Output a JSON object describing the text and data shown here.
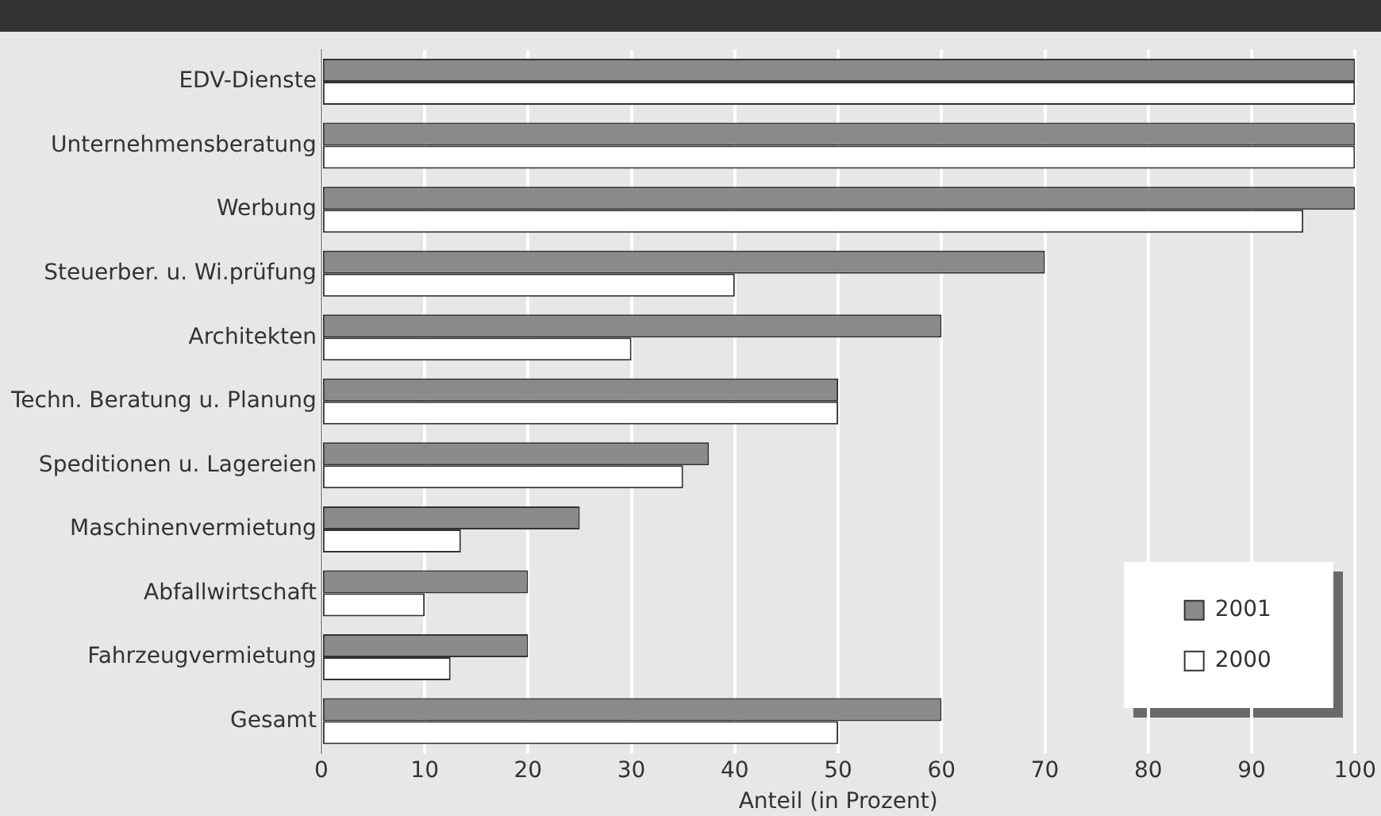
{
  "chart_data": {
    "type": "bar",
    "orientation": "horizontal",
    "xlabel": "Anteil (in Prozent)",
    "categories": [
      "EDV-Dienste",
      "Unternehmensberatung",
      "Werbung",
      "Steuerber. u. Wi.prüfung",
      "Architekten",
      "Techn. Beratung u. Planung",
      "Speditionen u. Lagereien",
      "Maschinenvermietung",
      "Abfallwirtschaft",
      "Fahrzeugvermietung",
      "Gesamt"
    ],
    "series": [
      {
        "name": "2001",
        "color": "#8a8a8a",
        "values": [
          100,
          100,
          100,
          70,
          60,
          50,
          37.5,
          25,
          20,
          20,
          60
        ]
      },
      {
        "name": "2000",
        "color": "#ffffff",
        "values": [
          100,
          100,
          95,
          40,
          30,
          50,
          35,
          13.5,
          10,
          12.5,
          50
        ]
      }
    ],
    "xlim": [
      0,
      100
    ],
    "xticks": [
      0,
      10,
      20,
      30,
      40,
      50,
      60,
      70,
      80,
      90,
      100
    ],
    "grid": "x",
    "legend": "bottom right"
  }
}
